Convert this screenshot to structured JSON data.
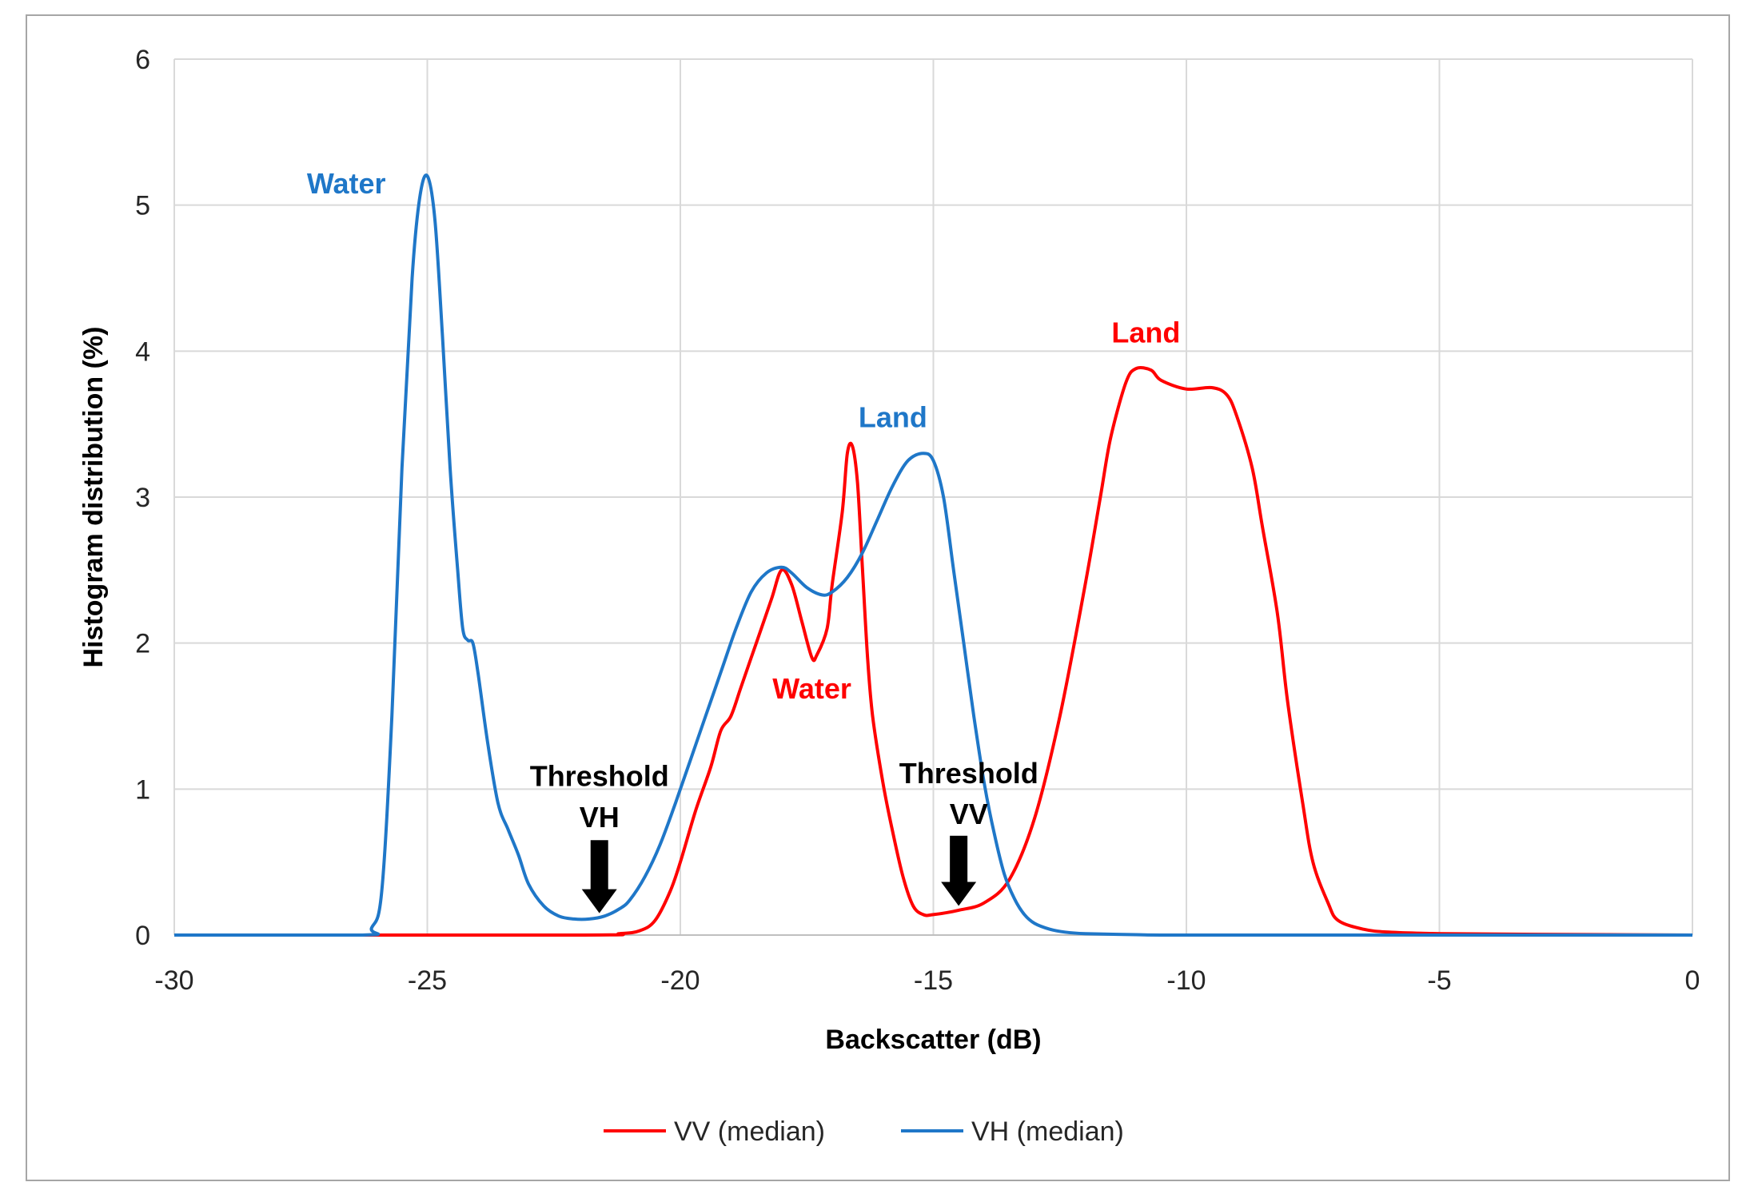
{
  "chart_data": {
    "type": "line",
    "title": "",
    "xlabel": "Backscatter (dB)",
    "ylabel": "Histogram distribution (%)",
    "xlim": [
      -30,
      0
    ],
    "ylim": [
      0,
      6
    ],
    "xticks": [
      -30,
      -25,
      -20,
      -15,
      -10,
      -5,
      0
    ],
    "yticks": [
      0,
      1,
      2,
      3,
      4,
      5,
      6
    ],
    "grid": true,
    "legend_position": "bottom",
    "series": [
      {
        "name": "VV (median)",
        "color": "#ff0000",
        "x": [
          -30,
          -22,
          -21.2,
          -20.8,
          -20.5,
          -20.2,
          -20,
          -19.7,
          -19.4,
          -19.2,
          -19,
          -18.8,
          -18.5,
          -18.2,
          -18,
          -17.8,
          -17.6,
          -17.4,
          -17.3,
          -17.1,
          -17,
          -16.8,
          -16.7,
          -16.6,
          -16.5,
          -16.4,
          -16.3,
          -16.2,
          -16,
          -15.8,
          -15.6,
          -15.4,
          -15.2,
          -15,
          -14.5,
          -14,
          -13.5,
          -13,
          -12.5,
          -12,
          -11.7,
          -11.5,
          -11.2,
          -11,
          -10.7,
          -10.5,
          -10,
          -9.5,
          -9.2,
          -9,
          -8.7,
          -8.5,
          -8.2,
          -8,
          -7.7,
          -7.5,
          -7.2,
          -7,
          -6.5,
          -6,
          -5,
          -3,
          0
        ],
        "y": [
          0,
          0,
          0.01,
          0.03,
          0.1,
          0.3,
          0.5,
          0.85,
          1.15,
          1.4,
          1.5,
          1.7,
          2.0,
          2.3,
          2.5,
          2.4,
          2.15,
          1.9,
          1.92,
          2.1,
          2.4,
          2.9,
          3.3,
          3.35,
          3.1,
          2.5,
          1.9,
          1.5,
          1.05,
          0.7,
          0.4,
          0.2,
          0.14,
          0.14,
          0.17,
          0.22,
          0.38,
          0.8,
          1.5,
          2.4,
          3.0,
          3.4,
          3.78,
          3.88,
          3.87,
          3.8,
          3.74,
          3.75,
          3.7,
          3.55,
          3.2,
          2.8,
          2.2,
          1.6,
          0.9,
          0.5,
          0.22,
          0.1,
          0.04,
          0.02,
          0.01,
          0.005,
          0.0
        ]
      },
      {
        "name": "VH (median)",
        "color": "#1f77c8",
        "x": [
          -30,
          -26.3,
          -26.1,
          -25.9,
          -25.7,
          -25.5,
          -25.3,
          -25.15,
          -25,
          -24.85,
          -24.7,
          -24.55,
          -24.4,
          -24.3,
          -24.2,
          -24.1,
          -24,
          -23.8,
          -23.6,
          -23.4,
          -23.2,
          -23,
          -22.7,
          -22.4,
          -22.1,
          -21.8,
          -21.5,
          -21.2,
          -21,
          -20.7,
          -20.4,
          -20.1,
          -19.8,
          -19.5,
          -19.2,
          -18.9,
          -18.6,
          -18.3,
          -18,
          -17.8,
          -17.5,
          -17.2,
          -17,
          -16.7,
          -16.4,
          -16.1,
          -15.8,
          -15.5,
          -15.2,
          -15,
          -14.8,
          -14.6,
          -14.4,
          -14.2,
          -14,
          -13.8,
          -13.6,
          -13.4,
          -13.2,
          -13,
          -12.7,
          -12.4,
          -12,
          -11,
          -10,
          -5,
          0
        ],
        "y": [
          0,
          0,
          0.05,
          0.3,
          1.5,
          3.2,
          4.5,
          5.05,
          5.2,
          4.9,
          4.1,
          3.2,
          2.5,
          2.1,
          2.02,
          2.0,
          1.8,
          1.3,
          0.9,
          0.72,
          0.55,
          0.35,
          0.2,
          0.13,
          0.11,
          0.11,
          0.13,
          0.18,
          0.24,
          0.4,
          0.62,
          0.9,
          1.2,
          1.5,
          1.8,
          2.1,
          2.35,
          2.48,
          2.52,
          2.48,
          2.38,
          2.33,
          2.35,
          2.45,
          2.62,
          2.85,
          3.08,
          3.25,
          3.3,
          3.25,
          3.0,
          2.5,
          2.0,
          1.5,
          1.05,
          0.7,
          0.42,
          0.25,
          0.14,
          0.08,
          0.04,
          0.02,
          0.01,
          0.003,
          0.0,
          0.0,
          0.0
        ]
      }
    ],
    "annotations": [
      {
        "text": "Water",
        "color": "#1f77c8",
        "x": -26.6,
        "y": 5.08,
        "anchor": "middle"
      },
      {
        "text": "Land",
        "color": "#1f77c8",
        "x": -15.8,
        "y": 3.48,
        "anchor": "middle"
      },
      {
        "text": "Land",
        "color": "#ff0000",
        "x": -10.8,
        "y": 4.06,
        "anchor": "middle"
      },
      {
        "text": "Water",
        "color": "#ff0000",
        "x": -17.4,
        "y": 1.62,
        "anchor": "middle"
      },
      {
        "text": "Threshold",
        "color": "#000000",
        "x": -21.6,
        "y": 1.02,
        "anchor": "middle"
      },
      {
        "text": "VH",
        "color": "#000000",
        "x": -21.6,
        "y": 0.74,
        "anchor": "middle"
      },
      {
        "text": "Threshold",
        "color": "#000000",
        "x": -14.3,
        "y": 1.04,
        "anchor": "middle"
      },
      {
        "text": "VV",
        "color": "#000000",
        "x": -14.3,
        "y": 0.76,
        "anchor": "middle"
      }
    ],
    "arrows": [
      {
        "name": "threshold-vh-arrow",
        "x": -21.6,
        "y_from": 0.65,
        "y_to": 0.15
      },
      {
        "name": "threshold-vv-arrow",
        "x": -14.5,
        "y_from": 0.68,
        "y_to": 0.2
      }
    ]
  }
}
